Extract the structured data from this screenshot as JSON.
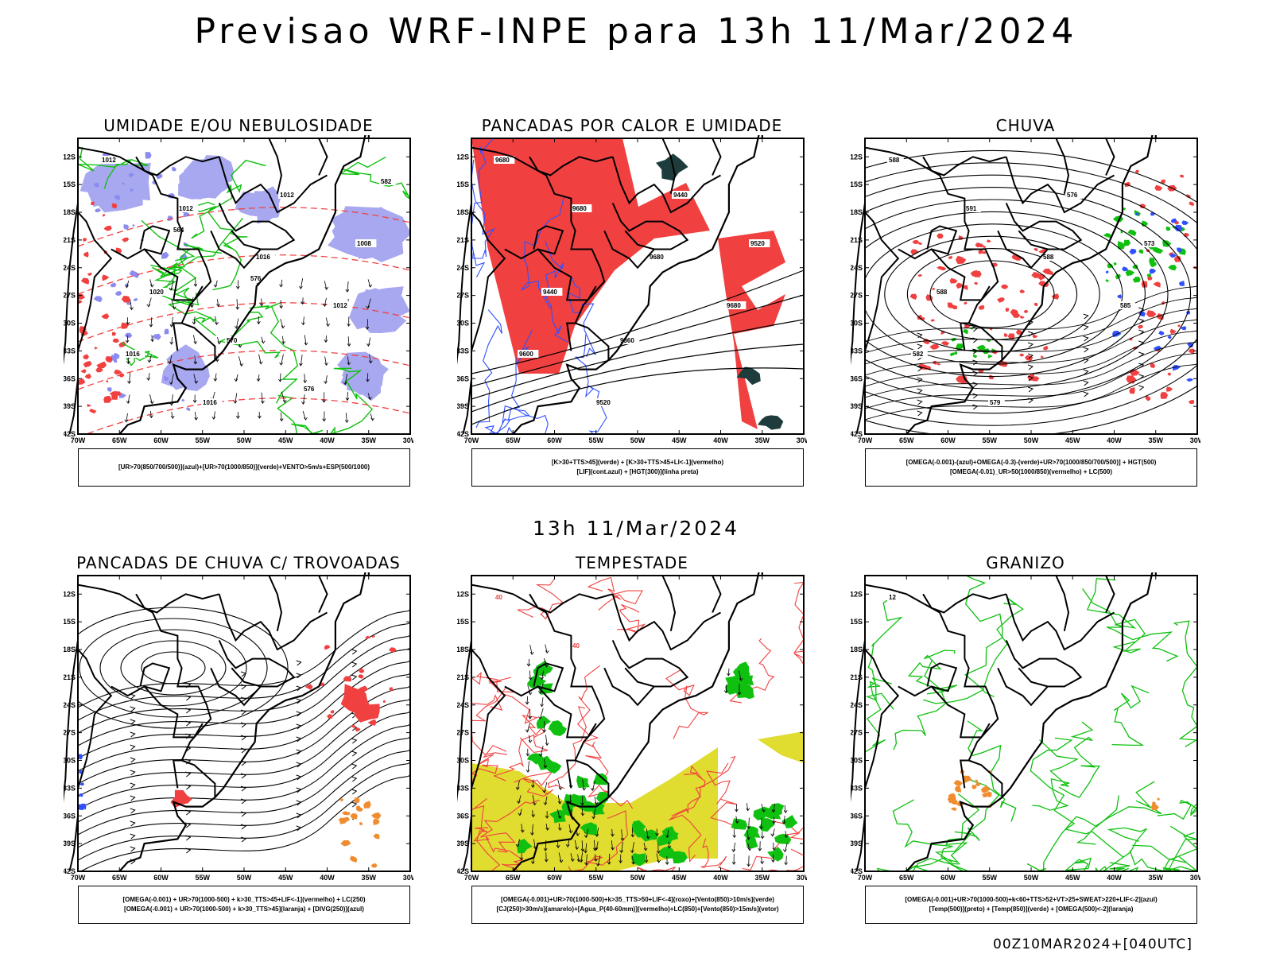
{
  "page": {
    "title": "Previsao WRF-INPE  para 13h 11/Mar/2024",
    "mid_title": "13h 11/Mar/2024",
    "footer": "00Z10MAR2024+[040UTC]"
  },
  "axes": {
    "lat_labels": [
      "12S",
      "15S",
      "18S",
      "21S",
      "24S",
      "27S",
      "30S",
      "33S",
      "36S",
      "39S",
      "42S"
    ],
    "lon_labels": [
      "70W",
      "65W",
      "60W",
      "55W",
      "50W",
      "45W",
      "40W",
      "35W",
      "30W"
    ]
  },
  "colors": {
    "red": "#f04040",
    "blue": "#3050ff",
    "green": "#10c010",
    "lavender": "#a8a8f0",
    "teal": "#1e3c3c",
    "yellow": "#e0dc30",
    "orange": "#f08c30",
    "black": "#000000"
  },
  "panels": [
    {
      "id": "umidade",
      "title": "UMIDADE E/OU NEBULOSIDADE",
      "legend": [
        "[UR>70(850/700/500)](azul)+[UR>70(1000/850)](verde)+VENTO>5m/s+ESP(500/1000)"
      ],
      "contour_labels": [
        "1012",
        "1012",
        "1016",
        "1012",
        "1016",
        "1016",
        "1012",
        "1008",
        "1020",
        "570",
        "576",
        "582",
        "564",
        "576"
      ]
    },
    {
      "id": "pancadas-calor",
      "title": "PANCADAS POR CALOR E UMIDADE",
      "legend": [
        "[K>30+TTS>45](verde) + [K>30+TTS>45+LI<-1](vermelho)",
        "[LIF](cont.azul) + [HGT(300)](linha preta)"
      ],
      "contour_labels": [
        "9680",
        "9680",
        "9680",
        "9680",
        "9600",
        "9520",
        "9440",
        "9520",
        "9440",
        "9360"
      ]
    },
    {
      "id": "chuva",
      "title": "CHUVA",
      "legend": [
        "[OMEGA(-0.001)-(azul)+OMEGA(-0.3)-(verde)+UR>70(1000/850/700/500)] + HGT(500)",
        "[OMEGA(-0.01)_UR>50(1000/850)(vermelho) + LC(500)"
      ],
      "contour_labels": [
        "588",
        "591",
        "588",
        "585",
        "582",
        "579",
        "576",
        "573",
        "588"
      ]
    },
    {
      "id": "pancadas-trovoadas",
      "title": "PANCADAS DE CHUVA C/ TROVOADAS",
      "legend": [
        "[OMEGA(-0.001) + UR>70(1000-500) + k>30_TTS>45+LIF<-1](vermelho) + LC(250)",
        "[OMEGA(-0.001) + UR>70(1000-500) + k>30_TTS>45](laranja) + [DIVG(250)](azul)"
      ],
      "contour_labels": []
    },
    {
      "id": "tempestade",
      "title": "TEMPESTADE",
      "legend": [
        "[OMEGA(-0.001)+UR>70(1000-500)+k>35_TTS>50+LIF<-4](roxo)+[Vento(850)>10m/s](verde)",
        "[CJ(250)>30m/s](amarelo)+[Agua_P(40-60mm)](vermelho)+LC(850)+[Vento(850)>15m/s](vetor)"
      ],
      "contour_labels": [
        "40",
        "40"
      ]
    },
    {
      "id": "granizo",
      "title": "GRANIZO",
      "legend": [
        "[OMEGA(-0.001)+UR>70(1000-500)+k<60+TTS>52+VT>25+SWEAT>220+LIF<-2](azul)",
        "[Temp(500)](preto) + [Temp(850)](verde) + [OMEGA(500)<-2](laranja)"
      ],
      "contour_labels": [
        "12"
      ]
    }
  ]
}
